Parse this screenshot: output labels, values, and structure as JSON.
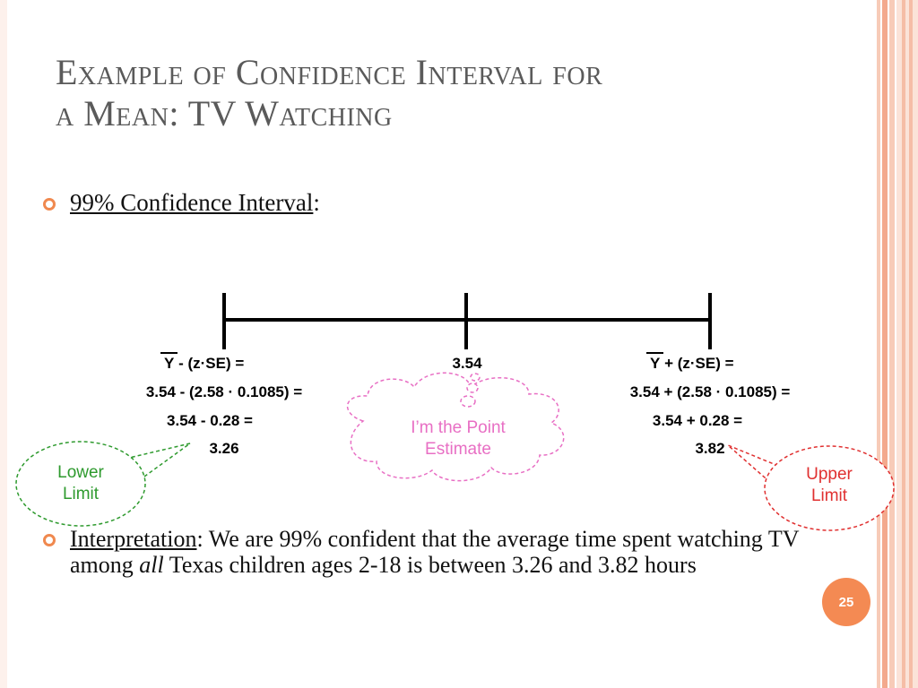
{
  "title": {
    "line1": "Example of Confidence Interval for",
    "line2": "a Mean: TV Watching"
  },
  "bullet1": {
    "label": "99% Confidence Interval",
    "suffix": ":"
  },
  "left_formula": {
    "ybar": "Y",
    "line1": " - (z·SE) =",
    "line2": "3.54 - (2.58 · 0.1085) =",
    "line3": "3.54 - 0.28 =",
    "line4": "3.26"
  },
  "center_value": "3.54",
  "right_formula": {
    "ybar": "Y",
    "line1": " + (z·SE) =",
    "line2": "3.54 + (2.58 · 0.1085) =",
    "line3": "3.54 + 0.28 =",
    "line4": "3.82"
  },
  "callouts": {
    "point_estimate": {
      "line1": "I’m the Point",
      "line2": "Estimate",
      "color": "#e86fc4"
    },
    "lower": {
      "line1": "Lower",
      "line2": "Limit",
      "color": "#2e9a2e"
    },
    "upper": {
      "line1": "Upper",
      "line2": "Limit",
      "color": "#e03030"
    }
  },
  "interpretation": {
    "label": "Interpretation",
    "text1": ": We are 99% confident that the average time spent watching TV among ",
    "emph": "all",
    "text2": " Texas children ages 2-18 is between 3.26 and 3.82 hours"
  },
  "page_number": "25",
  "colors": {
    "accent": "#f48a53",
    "title": "#5a5a5a"
  }
}
